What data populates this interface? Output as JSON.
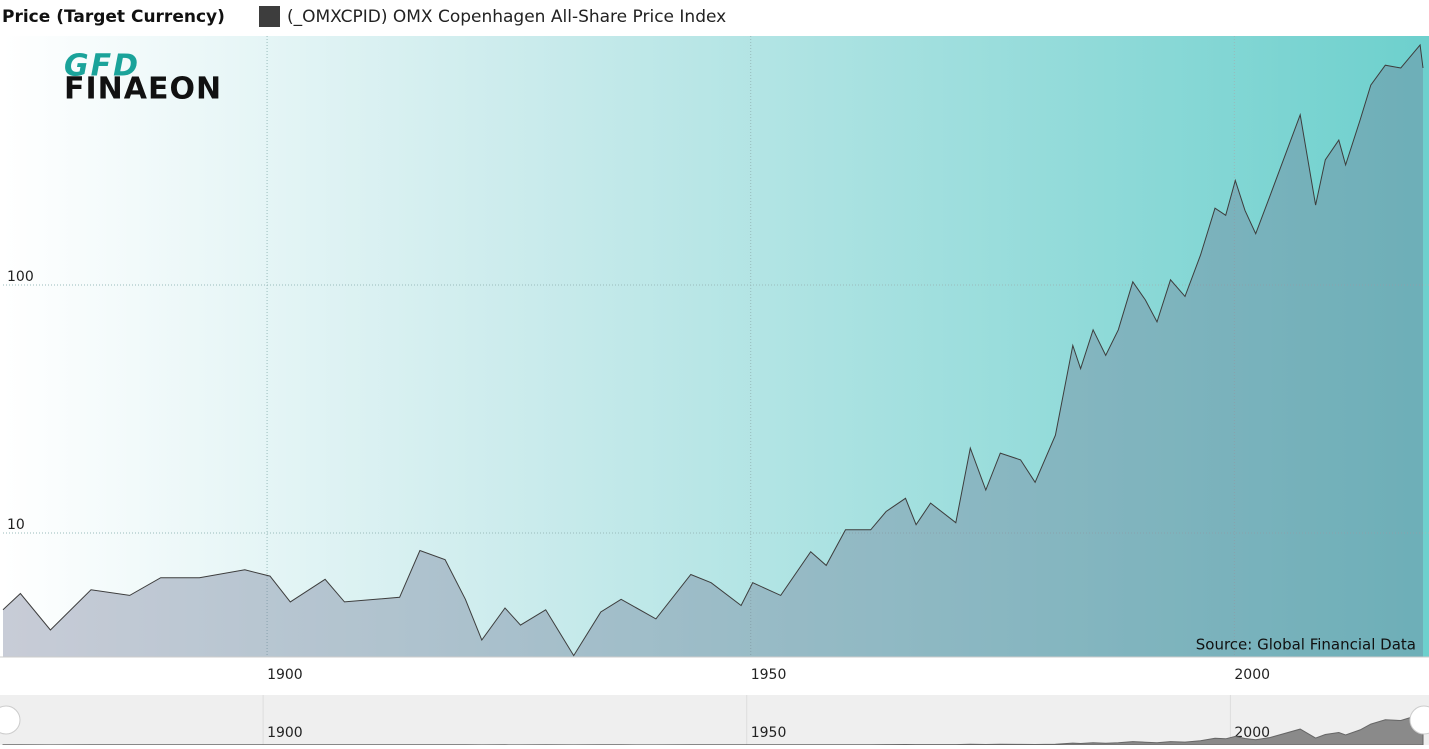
{
  "chart_data": {
    "type": "area",
    "title": "Price (Target Currency)",
    "logo": {
      "top": "GFD",
      "bottom": "FINAEON"
    },
    "source": "Source: Global Financial Data",
    "log_scale": true,
    "grid": true,
    "xlim": [
      1872.7,
      2019.5
    ],
    "xticks": [
      1900,
      1950,
      2000
    ],
    "ylim": [
      3.16,
      1010
    ],
    "yticks": [
      10,
      100
    ],
    "x": [
      1872.7,
      1874.5,
      1877.6,
      1881.8,
      1885.8,
      1889,
      1893,
      1897.7,
      1900.3,
      1902.4,
      1906,
      1908,
      1913.7,
      1915.8,
      1918.4,
      1920.5,
      1922.2,
      1924.6,
      1926.2,
      1928.8,
      1931.7,
      1934.5,
      1936.6,
      1940.2,
      1943.8,
      1945.9,
      1949,
      1950.2,
      1953.1,
      1956.2,
      1957.8,
      1959.8,
      1962.4,
      1964,
      1966,
      1967.1,
      1968.6,
      1971.2,
      1972.7,
      1974.3,
      1975.8,
      1977.9,
      1979.4,
      1981.5,
      1983.3,
      1984.1,
      1985.4,
      1986.7,
      1988,
      1989.5,
      1990.8,
      1992,
      1993.4,
      1994.9,
      1996.5,
      1998,
      1999.1,
      2000.1,
      2001.1,
      2002.2,
      2003.7,
      2006.8,
      2008.4,
      2009.4,
      2010.8,
      2011.5,
      2013,
      2014.1,
      2015.6,
      2017.2,
      2019.2,
      2019.5
    ],
    "series": [
      {
        "name": "(_OMXCPID) OMX Copenhagen All-Share Price Index",
        "color": "#3d3d3d",
        "values": [
          4.9,
          5.7,
          4.06,
          5.9,
          5.6,
          6.6,
          6.6,
          7.1,
          6.7,
          5.27,
          6.5,
          5.27,
          5.5,
          8.5,
          7.8,
          5.4,
          3.7,
          4.98,
          4.25,
          4.9,
          3.2,
          4.8,
          5.4,
          4.5,
          6.8,
          6.3,
          5.1,
          6.3,
          5.6,
          8.4,
          7.4,
          10.3,
          10.3,
          12.2,
          13.8,
          10.8,
          13.2,
          11,
          22,
          14.9,
          21,
          19.7,
          16,
          24.8,
          57,
          46,
          66,
          52,
          66,
          103,
          87,
          71,
          105,
          90,
          132,
          204,
          191,
          264,
          200,
          161,
          230,
          486,
          210,
          320,
          384,
          305,
          463,
          640,
          770,
          750,
          930,
          750
        ]
      }
    ]
  }
}
